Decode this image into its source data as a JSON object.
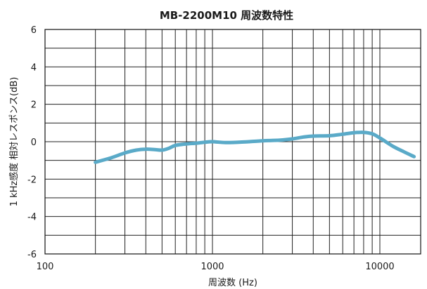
{
  "chart_data": {
    "type": "line",
    "title": "MB-2200M10 周波数特性",
    "xlabel": "周波数 (Hz)",
    "ylabel": "1 kHz感度 相対レスポンス(dB)",
    "x_scale": "log",
    "xlim": [
      100,
      17000
    ],
    "ylim": [
      -6,
      6
    ],
    "x_ticks": [
      100,
      1000,
      10000
    ],
    "x_tick_labels": [
      "100",
      "1000",
      "10000"
    ],
    "y_ticks": [
      6,
      4,
      2,
      0,
      -2,
      -4,
      -6
    ],
    "y_tick_labels": [
      "6",
      "4",
      "2",
      "0",
      "-2",
      "-4",
      "-6"
    ],
    "grid": true,
    "series": [
      {
        "color": "#5aaac8",
        "x": [
          200,
          250,
          300,
          350,
          400,
          450,
          500,
          550,
          600,
          700,
          800,
          900,
          1000,
          1200,
          1500,
          2000,
          2500,
          3000,
          3500,
          4000,
          5000,
          6000,
          7000,
          8000,
          9000,
          10000,
          12000,
          14000,
          16000
        ],
        "y": [
          -1.1,
          -0.85,
          -0.6,
          -0.45,
          -0.4,
          -0.42,
          -0.45,
          -0.35,
          -0.2,
          -0.12,
          -0.08,
          -0.03,
          0.0,
          -0.05,
          -0.02,
          0.05,
          0.08,
          0.15,
          0.25,
          0.3,
          0.32,
          0.4,
          0.48,
          0.5,
          0.42,
          0.2,
          -0.25,
          -0.55,
          -0.8
        ]
      }
    ]
  }
}
